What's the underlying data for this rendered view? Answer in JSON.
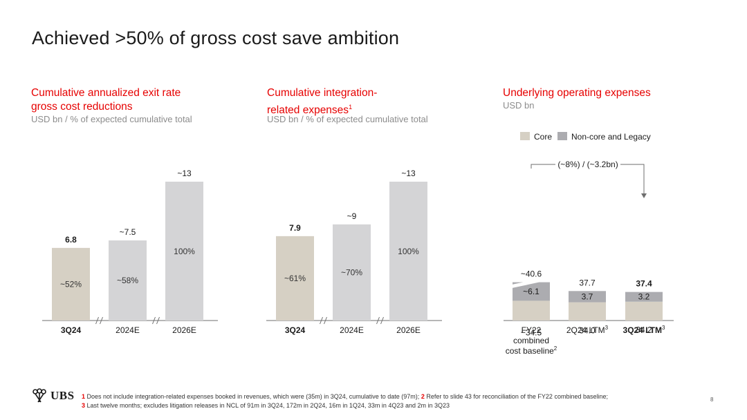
{
  "page": {
    "title": "Achieved >50% of gross cost save ambition",
    "page_number": "8"
  },
  "panels": [
    {
      "title_line1": "Cumulative annualized exit rate",
      "title_line2": "gross cost reductions",
      "subtitle": "USD bn / % of expected cumulative total"
    },
    {
      "title_line1": "Cumulative integration-",
      "title_line2": "related expenses",
      "title_sup": "1",
      "subtitle": "USD bn / % of expected cumulative total"
    },
    {
      "title_line1": "Underlying operating expenses",
      "subtitle": "USD bn"
    }
  ],
  "chart_data": [
    {
      "type": "bar",
      "title": "Cumulative annualized exit rate gross cost reductions",
      "categories": [
        "3Q24",
        "2024E",
        "2026E"
      ],
      "values": [
        6.8,
        7.5,
        13
      ],
      "value_labels": [
        "6.8",
        "~7.5",
        "~13"
      ],
      "pct_labels": [
        "~52%",
        "~58%",
        "100%"
      ],
      "bold": [
        true,
        false,
        false
      ],
      "colors": [
        "#d6d0c4",
        "#d4d4d6",
        "#d4d4d6"
      ],
      "ylim": [
        0,
        13
      ]
    },
    {
      "type": "bar",
      "title": "Cumulative integration-related expenses",
      "categories": [
        "3Q24",
        "2024E",
        "2026E"
      ],
      "values": [
        7.9,
        9,
        13
      ],
      "value_labels": [
        "7.9",
        "~9",
        "~13"
      ],
      "pct_labels": [
        "~61%",
        "~70%",
        "100%"
      ],
      "bold": [
        true,
        false,
        false
      ],
      "colors": [
        "#d6d0c4",
        "#d4d4d6",
        "#d4d4d6"
      ],
      "ylim": [
        0,
        13
      ]
    },
    {
      "type": "stacked_bar",
      "title": "Underlying operating expenses",
      "categories": [
        "FY22 combined cost baseline",
        "2Q24 LTM",
        "3Q24 LTM"
      ],
      "category_lines": [
        [
          "FY22",
          "combined",
          "cost baseline"
        ],
        [
          "2Q24 LTM"
        ],
        [
          "3Q24 LTM"
        ]
      ],
      "category_sups": [
        "2",
        "3",
        "3"
      ],
      "bold": [
        false,
        false,
        true
      ],
      "series": [
        {
          "name": "Core",
          "color": "#d6d0c4",
          "values": [
            34.5,
            34.0,
            34.2
          ],
          "labels": [
            "~34.5",
            "34.0",
            "34.2"
          ]
        },
        {
          "name": "Non-core and Legacy",
          "color": "#acacb0",
          "values": [
            6.1,
            3.7,
            3.2
          ],
          "labels": [
            "~6.1",
            "3.7",
            "3.2"
          ]
        }
      ],
      "totals": [
        40.6,
        37.7,
        37.4
      ],
      "total_labels": [
        "~40.6",
        "37.7",
        "37.4"
      ],
      "annotation": "(~8%) / (~3.2bn)",
      "axis_break": true
    }
  ],
  "footer": {
    "n1": "1",
    "t1": "Does not include integration-related expenses booked in revenues, which were (35m) in 3Q24, cumulative to date (97m);",
    "n2": "2",
    "t2": "Refer to slide 43 for reconciliation of the FY22 combined baseline;",
    "n3": "3",
    "t3": "Last twelve months; excludes litigation releases in NCL of 91m in 3Q24, 172m in 2Q24, 16m in 1Q24, 33m in 4Q23 and 2m in 3Q23"
  },
  "logo": {
    "text": "UBS",
    "icon": "keys-icon"
  }
}
